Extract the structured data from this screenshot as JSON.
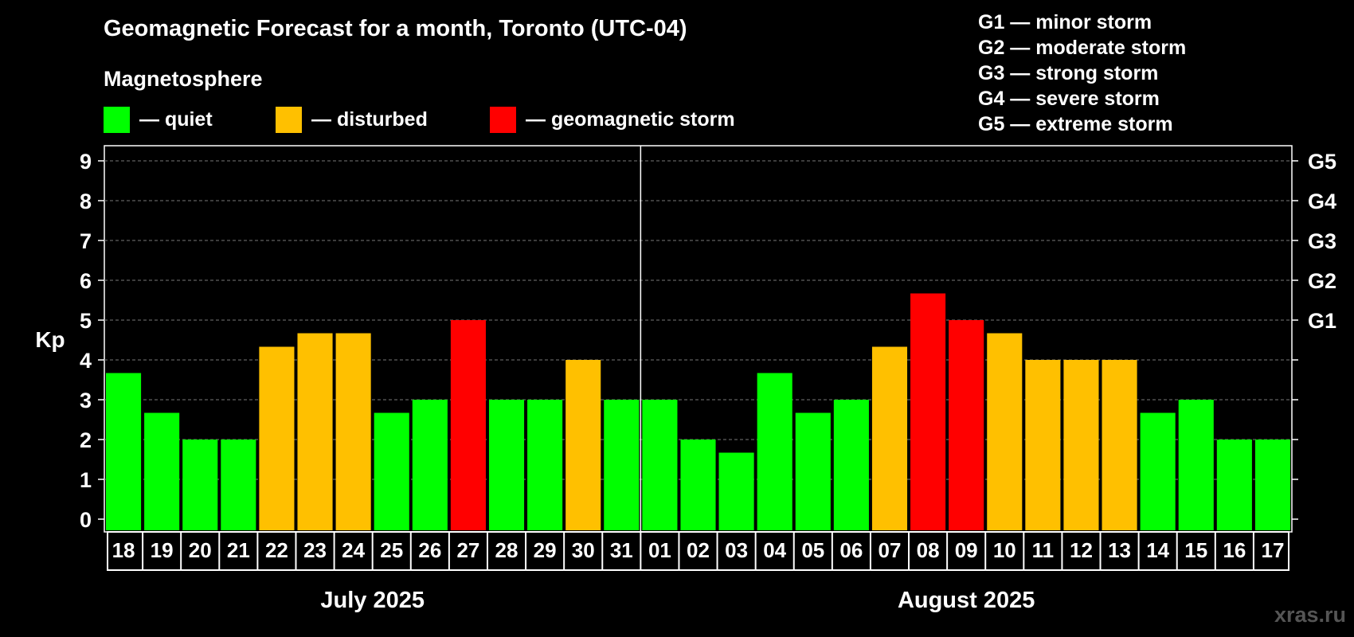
{
  "title": "Geomagnetic Forecast for a month, Toronto (UTC-04)",
  "legend": {
    "title": "Magnetosphere",
    "items": [
      {
        "label": "— quiet",
        "color": "#00ff00"
      },
      {
        "label": "— disturbed",
        "color": "#ffc000"
      },
      {
        "label": "— geomagnetic storm",
        "color": "#ff0000"
      }
    ]
  },
  "storm_levels": [
    "G1 — minor storm",
    "G2 — moderate storm",
    "G3 — strong storm",
    "G4 — severe storm",
    "G5 — extreme storm"
  ],
  "watermark": "xras.ru",
  "chart_data": {
    "type": "bar",
    "ylabel": "Kp",
    "ylim": [
      0,
      9
    ],
    "yticks": [
      0,
      1,
      2,
      3,
      4,
      5,
      6,
      7,
      8,
      9
    ],
    "right_axis_labels": [
      {
        "value": 5,
        "label": "G1"
      },
      {
        "value": 6,
        "label": "G2"
      },
      {
        "value": 7,
        "label": "G3"
      },
      {
        "value": 8,
        "label": "G4"
      },
      {
        "value": 9,
        "label": "G5"
      }
    ],
    "grid": "horizontal dashed",
    "months": [
      {
        "label": "July 2025",
        "start_index": 0,
        "end_index": 13
      },
      {
        "label": "August 2025",
        "start_index": 14,
        "end_index": 30
      }
    ],
    "categories": [
      "18",
      "19",
      "20",
      "21",
      "22",
      "23",
      "24",
      "25",
      "26",
      "27",
      "28",
      "29",
      "30",
      "31",
      "01",
      "02",
      "03",
      "04",
      "05",
      "06",
      "07",
      "08",
      "09",
      "10",
      "11",
      "12",
      "13",
      "14",
      "15",
      "16",
      "17"
    ],
    "values": [
      3.67,
      2.67,
      2,
      2,
      4.33,
      4.67,
      4.67,
      2.67,
      3,
      5,
      3,
      3,
      4,
      3,
      3,
      2,
      1.67,
      3.67,
      2.67,
      3,
      4.33,
      5.67,
      5,
      4.67,
      4,
      4,
      4,
      2.67,
      3,
      2,
      2
    ],
    "status": [
      "quiet",
      "quiet",
      "quiet",
      "quiet",
      "disturbed",
      "disturbed",
      "disturbed",
      "quiet",
      "quiet",
      "storm",
      "quiet",
      "quiet",
      "disturbed",
      "quiet",
      "quiet",
      "quiet",
      "quiet",
      "quiet",
      "quiet",
      "quiet",
      "disturbed",
      "storm",
      "storm",
      "disturbed",
      "disturbed",
      "disturbed",
      "disturbed",
      "quiet",
      "quiet",
      "quiet",
      "quiet"
    ],
    "status_colors": {
      "quiet": "#00ff00",
      "disturbed": "#ffc000",
      "storm": "#ff0000"
    }
  }
}
